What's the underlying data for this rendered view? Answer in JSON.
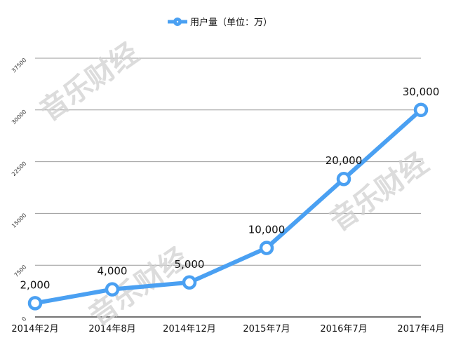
{
  "chart_data": {
    "type": "line",
    "title": "",
    "xlabel": "",
    "ylabel": "",
    "categories": [
      "2014年2月",
      "2014年8月",
      "2014年12月",
      "2015年7月",
      "2016年7月",
      "2017年4月"
    ],
    "series": [
      {
        "name": "用户量（单位：万）",
        "values": [
          2000,
          4000,
          5000,
          10000,
          20000,
          30000
        ],
        "data_labels": [
          "2,000",
          "4,000",
          "5,000",
          "10,000",
          "20,000",
          "30,000"
        ],
        "color": "#4aa0f2"
      }
    ],
    "ylim": [
      0,
      37500
    ],
    "yticks": [
      "0",
      "7500",
      "15000",
      "22500",
      "30000",
      "37500"
    ],
    "grid": true,
    "legend": "top-center",
    "watermark": "音乐财经"
  }
}
